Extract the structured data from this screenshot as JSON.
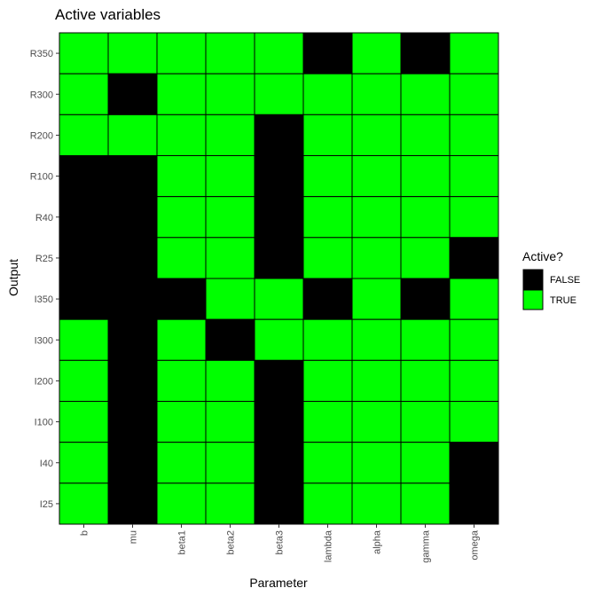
{
  "chart_data": {
    "type": "heatmap",
    "title": "Active variables",
    "xlabel": "Parameter",
    "ylabel": "Output",
    "x_categories": [
      "b",
      "mu",
      "beta1",
      "beta2",
      "beta3",
      "lambda",
      "alpha",
      "gamma",
      "omega"
    ],
    "y_categories": [
      "R350",
      "R300",
      "R200",
      "R100",
      "R40",
      "R25",
      "I350",
      "I300",
      "I200",
      "I100",
      "I40",
      "I25"
    ],
    "values": [
      [
        true,
        true,
        true,
        true,
        true,
        false,
        true,
        false,
        true
      ],
      [
        true,
        false,
        true,
        true,
        true,
        true,
        true,
        true,
        true
      ],
      [
        true,
        true,
        true,
        true,
        false,
        true,
        true,
        true,
        true
      ],
      [
        false,
        false,
        true,
        true,
        false,
        true,
        true,
        true,
        true
      ],
      [
        false,
        false,
        true,
        true,
        false,
        true,
        true,
        true,
        true
      ],
      [
        false,
        false,
        true,
        true,
        false,
        true,
        true,
        true,
        false
      ],
      [
        false,
        false,
        false,
        true,
        true,
        false,
        true,
        false,
        true
      ],
      [
        true,
        false,
        true,
        false,
        true,
        true,
        true,
        true,
        true
      ],
      [
        true,
        false,
        true,
        true,
        false,
        true,
        true,
        true,
        true
      ],
      [
        true,
        false,
        true,
        true,
        false,
        true,
        true,
        true,
        true
      ],
      [
        true,
        false,
        true,
        true,
        false,
        true,
        true,
        true,
        false
      ],
      [
        true,
        false,
        true,
        true,
        false,
        true,
        true,
        true,
        false
      ]
    ],
    "legend": {
      "title": "Active?",
      "position": "right",
      "items": [
        {
          "label": "FALSE",
          "color": "#000000"
        },
        {
          "label": "TRUE",
          "color": "#00ff00"
        }
      ]
    },
    "colors": {
      "true": "#00ff00",
      "false": "#000000",
      "cell_border": "#000000"
    }
  }
}
